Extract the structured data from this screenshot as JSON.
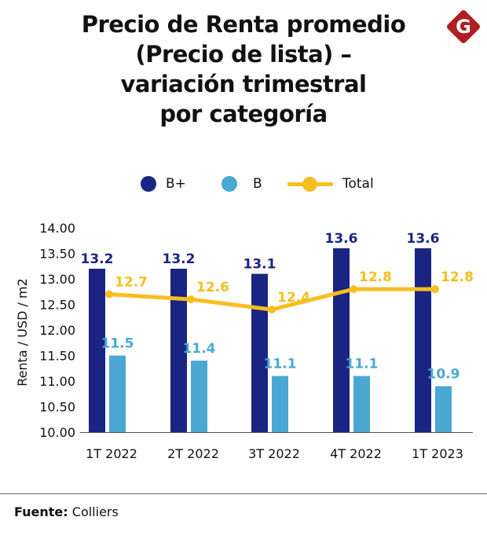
{
  "title_lines": [
    "Precio de Renta promedio",
    "(Precio de lista) –",
    "variación trimestral",
    "por categoría"
  ],
  "logo_letter": "G",
  "source": {
    "label": "Fuente:",
    "value": "Colliers"
  },
  "colors": {
    "b_plus": "#1a2482",
    "b": "#4aa8d3",
    "total": "#f7be1f",
    "logo": "#b01e24"
  },
  "chart_data": {
    "type": "bar",
    "title": "Precio de Renta promedio (Precio de lista) – variación trimestral por categoría",
    "ylabel": "Renta / USD / m2",
    "xlabel": "",
    "ylim": [
      10.0,
      14.0
    ],
    "yticks": [
      "14.00",
      "13.50",
      "13.00",
      "12.50",
      "12.00",
      "11.50",
      "11.00",
      "10.50",
      "10.00"
    ],
    "categories": [
      "1T 2022",
      "2T 2022",
      "3T 2022",
      "4T 2022",
      "1T 2023"
    ],
    "series": [
      {
        "name": "B+",
        "kind": "bar",
        "values": [
          13.2,
          13.2,
          13.1,
          13.6,
          13.6
        ],
        "labels": [
          "13.2",
          "13.2",
          "13.1",
          "13.6",
          "13.6"
        ]
      },
      {
        "name": "B",
        "kind": "bar",
        "values": [
          11.5,
          11.4,
          11.1,
          11.1,
          10.9
        ],
        "labels": [
          "11.5",
          "11.4",
          "11.1",
          "11.1",
          "10.9"
        ]
      },
      {
        "name": "Total",
        "kind": "line",
        "values": [
          12.7,
          12.6,
          12.4,
          12.8,
          12.8
        ],
        "labels": [
          "12.7",
          "12.6",
          "12.4",
          "12.8",
          "12.8"
        ]
      }
    ],
    "legend": "top-center",
    "grid": false
  }
}
